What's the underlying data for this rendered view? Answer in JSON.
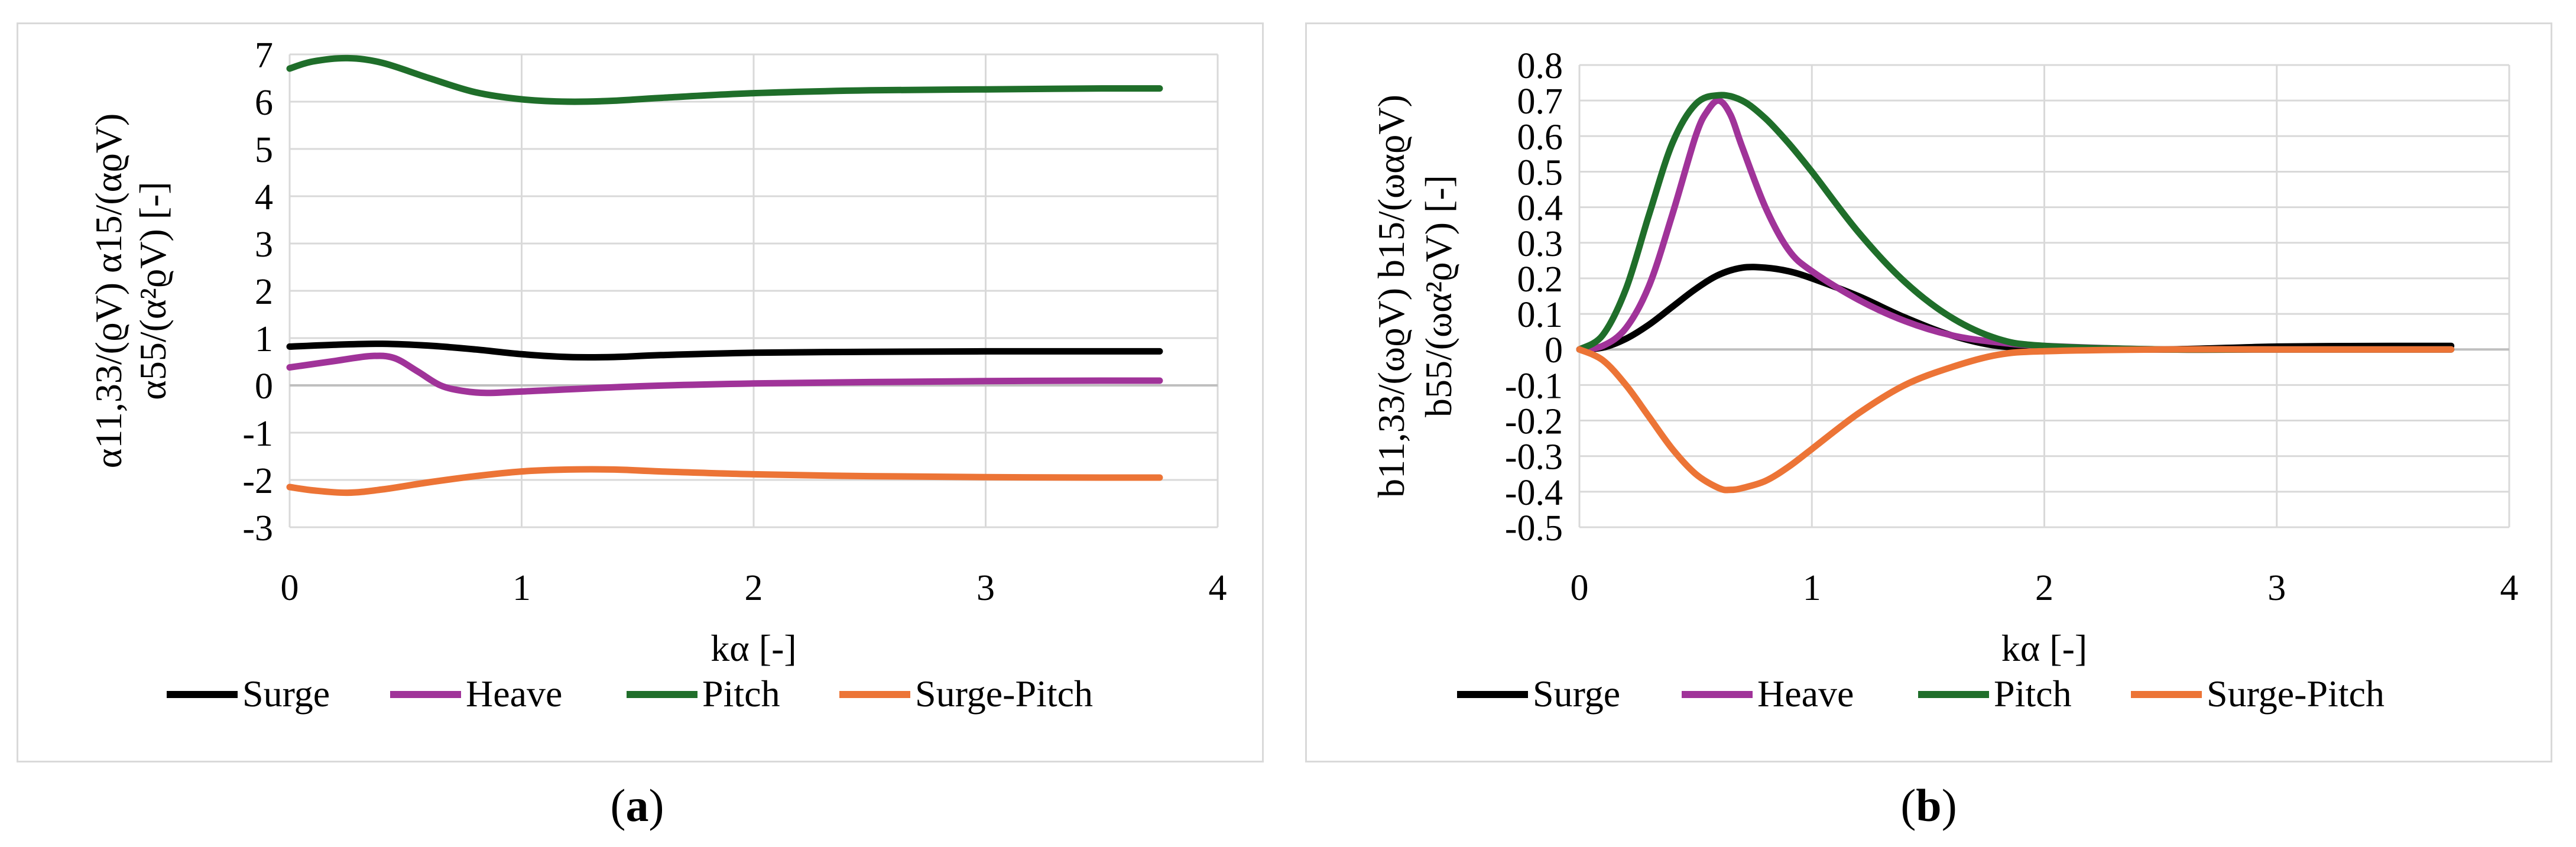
{
  "captions": {
    "a": "a",
    "b": "b"
  },
  "colors": {
    "Surge": "#000000",
    "Heave": "#a03399",
    "Pitch": "#1f6e2a",
    "Surge-Pitch": "#ec7436",
    "grid": "#d9d9d9"
  },
  "chart_data": [
    {
      "id": "a",
      "type": "line",
      "title": "",
      "xlabel": "kα [-]",
      "ylabel_lines": [
        "α11,33/(ϱV) α15/(αϱV)",
        "α55/(α²ϱV) [-]"
      ],
      "xlim": [
        0,
        4
      ],
      "ylim": [
        -3,
        7
      ],
      "xticks": [
        "0",
        "1",
        "2",
        "3",
        "4"
      ],
      "yticks": [
        "7",
        "6",
        "5",
        "4",
        "3",
        "2",
        "1",
        "0",
        "-1",
        "-2",
        "-3"
      ],
      "grid": true,
      "legend": "bottom",
      "series": [
        {
          "name": "Surge",
          "x": [
            0,
            0.2,
            0.4,
            0.6,
            0.8,
            1.0,
            1.2,
            1.4,
            1.6,
            2.0,
            2.5,
            3.0,
            3.5,
            3.75
          ],
          "y": [
            0.82,
            0.86,
            0.88,
            0.84,
            0.76,
            0.66,
            0.6,
            0.6,
            0.64,
            0.69,
            0.71,
            0.72,
            0.72,
            0.72
          ]
        },
        {
          "name": "Heave",
          "x": [
            0,
            0.2,
            0.35,
            0.45,
            0.55,
            0.65,
            0.75,
            0.85,
            1.0,
            1.5,
            2.0,
            2.5,
            3.0,
            3.5,
            3.75
          ],
          "y": [
            0.38,
            0.52,
            0.62,
            0.58,
            0.3,
            0.0,
            -0.12,
            -0.16,
            -0.13,
            -0.02,
            0.04,
            0.07,
            0.09,
            0.1,
            0.1
          ]
        },
        {
          "name": "Pitch",
          "x": [
            0,
            0.1,
            0.25,
            0.4,
            0.6,
            0.8,
            1.0,
            1.2,
            1.4,
            1.6,
            2.0,
            2.5,
            3.0,
            3.5,
            3.75
          ],
          "y": [
            6.7,
            6.85,
            6.92,
            6.82,
            6.5,
            6.2,
            6.05,
            6.0,
            6.02,
            6.08,
            6.18,
            6.24,
            6.26,
            6.28,
            6.28
          ]
        },
        {
          "name": "Surge-Pitch",
          "x": [
            0,
            0.1,
            0.25,
            0.4,
            0.6,
            0.8,
            1.0,
            1.2,
            1.4,
            1.6,
            2.0,
            2.5,
            3.0,
            3.5,
            3.75
          ],
          "y": [
            -2.15,
            -2.22,
            -2.27,
            -2.2,
            -2.05,
            -1.92,
            -1.82,
            -1.78,
            -1.78,
            -1.82,
            -1.88,
            -1.92,
            -1.94,
            -1.95,
            -1.95
          ]
        }
      ]
    },
    {
      "id": "b",
      "type": "line",
      "title": "",
      "xlabel": "kα [-]",
      "ylabel_lines": [
        "b11,33/(ωϱV) b15/(ωαϱV)",
        "b55/(ωα²ϱV) [-]"
      ],
      "xlim": [
        0,
        4
      ],
      "ylim": [
        -0.5,
        0.8
      ],
      "xticks": [
        "0",
        "1",
        "2",
        "3",
        "4"
      ],
      "yticks": [
        "0.8",
        "0.7",
        "0.6",
        "0.5",
        "0.4",
        "0.3",
        "0.2",
        "0.1",
        "0",
        "-0.1",
        "-0.2",
        "-0.3",
        "-0.4",
        "-0.5"
      ],
      "grid": true,
      "legend": "bottom",
      "series": [
        {
          "name": "Surge",
          "x": [
            0,
            0.1,
            0.2,
            0.3,
            0.4,
            0.5,
            0.6,
            0.7,
            0.8,
            0.9,
            1.0,
            1.2,
            1.4,
            1.6,
            1.8,
            2.0,
            2.5,
            3.0,
            3.5,
            3.75
          ],
          "y": [
            0,
            0.005,
            0.03,
            0.07,
            0.12,
            0.17,
            0.21,
            0.23,
            0.23,
            0.22,
            0.2,
            0.15,
            0.09,
            0.04,
            0.01,
            0.005,
            0.0,
            0.008,
            0.01,
            0.01
          ]
        },
        {
          "name": "Heave",
          "x": [
            0,
            0.1,
            0.2,
            0.3,
            0.4,
            0.5,
            0.55,
            0.6,
            0.65,
            0.7,
            0.8,
            0.9,
            1.0,
            1.2,
            1.4,
            1.6,
            1.8,
            2.0,
            2.5,
            3.0,
            3.5,
            3.75
          ],
          "y": [
            0,
            0.01,
            0.06,
            0.18,
            0.38,
            0.6,
            0.67,
            0.7,
            0.66,
            0.57,
            0.4,
            0.28,
            0.22,
            0.14,
            0.08,
            0.04,
            0.02,
            0.01,
            0.0,
            0.0,
            0.0,
            0.0
          ]
        },
        {
          "name": "Pitch",
          "x": [
            0,
            0.1,
            0.2,
            0.3,
            0.4,
            0.5,
            0.6,
            0.7,
            0.8,
            0.9,
            1.0,
            1.2,
            1.4,
            1.6,
            1.8,
            2.0,
            2.5,
            3.0,
            3.5,
            3.75
          ],
          "y": [
            0,
            0.04,
            0.17,
            0.38,
            0.58,
            0.69,
            0.715,
            0.7,
            0.65,
            0.58,
            0.5,
            0.33,
            0.19,
            0.09,
            0.03,
            0.01,
            0.0,
            0.0,
            0.0,
            0.0
          ]
        },
        {
          "name": "Surge-Pitch",
          "x": [
            0,
            0.1,
            0.2,
            0.3,
            0.4,
            0.5,
            0.6,
            0.65,
            0.7,
            0.8,
            0.9,
            1.0,
            1.2,
            1.4,
            1.6,
            1.8,
            2.0,
            2.5,
            3.0,
            3.5,
            3.75
          ],
          "y": [
            0,
            -0.03,
            -0.1,
            -0.19,
            -0.28,
            -0.35,
            -0.39,
            -0.395,
            -0.39,
            -0.37,
            -0.33,
            -0.28,
            -0.18,
            -0.1,
            -0.05,
            -0.015,
            -0.005,
            0.0,
            0.0,
            0.0,
            0.0
          ]
        }
      ]
    }
  ]
}
